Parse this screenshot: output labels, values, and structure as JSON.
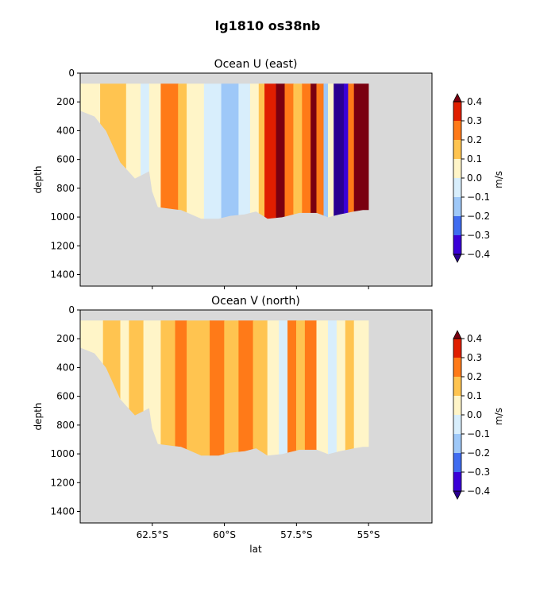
{
  "suptitle": "lg1810 os38nb",
  "colorbar_levels": [
    -0.4,
    -0.3,
    -0.2,
    -0.1,
    0.0,
    0.1,
    0.2,
    0.3,
    0.4
  ],
  "colorbar_tick_labels": [
    "−0.4",
    "−0.3",
    "−0.2",
    "−0.1",
    "0.0",
    "0.1",
    "0.2",
    "0.3",
    "0.4"
  ],
  "colorbar_colors": [
    "#3a00d8",
    "#3f6cf0",
    "#9ec8f8",
    "#d8eefc",
    "#fff5c8",
    "#ffc450",
    "#ff7a18",
    "#e01e00"
  ],
  "colorbar_extend_colors": {
    "under": "#2a0090",
    "over": "#7a0010"
  },
  "land_color": "#d9d9d9",
  "chart_data": [
    {
      "type": "heatmap",
      "title": "Ocean U (east)",
      "xlabel": "",
      "ylabel": "depth",
      "colorbar_label": "m/s",
      "x_unit": "degrees latitude",
      "xlim": [
        -65.0,
        -52.8
      ],
      "ylim": [
        1480,
        0
      ],
      "yticks": [
        0,
        200,
        400,
        600,
        800,
        1000,
        1200,
        1400
      ],
      "xticks": [
        -62.5,
        -60,
        -57.5,
        -55
      ],
      "xtick_labels": [
        "62.5°S",
        "60°S",
        "57.5°S",
        "55°S"
      ],
      "data_top_depth": 75,
      "section_bottom_depth": [
        [
          -65.0,
          260
        ],
        [
          -64.5,
          300
        ],
        [
          -64.1,
          400
        ],
        [
          -63.6,
          620
        ],
        [
          -63.1,
          730
        ],
        [
          -62.6,
          680
        ],
        [
          -62.5,
          820
        ],
        [
          -62.3,
          930
        ],
        [
          -61.5,
          950
        ],
        [
          -60.8,
          1010
        ],
        [
          -60.2,
          1010
        ],
        [
          -59.8,
          990
        ],
        [
          -59.3,
          980
        ],
        [
          -58.9,
          960
        ],
        [
          -58.5,
          1010
        ],
        [
          -58.0,
          1000
        ],
        [
          -57.4,
          970
        ],
        [
          -56.8,
          970
        ],
        [
          -56.4,
          1000
        ],
        [
          -56.0,
          980
        ],
        [
          -55.5,
          960
        ],
        [
          -55.2,
          950
        ],
        [
          -55.0,
          950
        ]
      ],
      "section_east_edge_lat": -55.0,
      "velocity_bands": [
        [
          -65.0,
          -64.3,
          0.05
        ],
        [
          -64.3,
          -63.4,
          0.15
        ],
        [
          -63.4,
          -62.9,
          0.05
        ],
        [
          -62.9,
          -62.6,
          -0.05
        ],
        [
          -62.6,
          -62.2,
          0.05
        ],
        [
          -62.2,
          -61.6,
          0.25
        ],
        [
          -61.6,
          -61.3,
          0.15
        ],
        [
          -61.3,
          -60.7,
          0.05
        ],
        [
          -60.7,
          -60.1,
          -0.05
        ],
        [
          -60.1,
          -59.5,
          -0.15
        ],
        [
          -59.5,
          -59.1,
          -0.05
        ],
        [
          -59.1,
          -58.8,
          0.05
        ],
        [
          -58.8,
          -58.6,
          0.15
        ],
        [
          -58.6,
          -58.2,
          0.35
        ],
        [
          -58.2,
          -57.9,
          0.45
        ],
        [
          -57.9,
          -57.6,
          0.25
        ],
        [
          -57.6,
          -57.3,
          0.15
        ],
        [
          -57.3,
          -57.0,
          0.25
        ],
        [
          -57.0,
          -56.8,
          0.45
        ],
        [
          -56.8,
          -56.55,
          0.25
        ],
        [
          -56.55,
          -56.4,
          -0.15
        ],
        [
          -56.4,
          -56.2,
          0.05
        ],
        [
          -56.2,
          -55.85,
          -0.45
        ],
        [
          -55.85,
          -55.7,
          -0.35
        ],
        [
          -55.7,
          -55.5,
          0.25
        ],
        [
          -55.5,
          -55.0,
          0.45
        ]
      ]
    },
    {
      "type": "heatmap",
      "title": "Ocean V (north)",
      "xlabel": "lat",
      "ylabel": "depth",
      "colorbar_label": "m/s",
      "x_unit": "degrees latitude",
      "xlim": [
        -65.0,
        -52.8
      ],
      "ylim": [
        1480,
        0
      ],
      "yticks": [
        0,
        200,
        400,
        600,
        800,
        1000,
        1200,
        1400
      ],
      "xticks": [
        -62.5,
        -60,
        -57.5,
        -55
      ],
      "xtick_labels": [
        "62.5°S",
        "60°S",
        "57.5°S",
        "55°S"
      ],
      "data_top_depth": 75,
      "section_bottom_depth": [
        [
          -65.0,
          260
        ],
        [
          -64.5,
          300
        ],
        [
          -64.1,
          400
        ],
        [
          -63.6,
          620
        ],
        [
          -63.1,
          730
        ],
        [
          -62.6,
          680
        ],
        [
          -62.5,
          820
        ],
        [
          -62.3,
          930
        ],
        [
          -61.5,
          950
        ],
        [
          -60.8,
          1010
        ],
        [
          -60.2,
          1010
        ],
        [
          -59.8,
          990
        ],
        [
          -59.3,
          980
        ],
        [
          -58.9,
          960
        ],
        [
          -58.5,
          1010
        ],
        [
          -58.0,
          1000
        ],
        [
          -57.4,
          970
        ],
        [
          -56.8,
          970
        ],
        [
          -56.4,
          1000
        ],
        [
          -56.0,
          980
        ],
        [
          -55.5,
          960
        ],
        [
          -55.2,
          950
        ],
        [
          -55.0,
          950
        ]
      ],
      "section_east_edge_lat": -55.0,
      "velocity_bands": [
        [
          -65.0,
          -64.2,
          0.05
        ],
        [
          -64.2,
          -63.6,
          0.15
        ],
        [
          -63.6,
          -63.3,
          0.05
        ],
        [
          -63.3,
          -62.8,
          0.15
        ],
        [
          -62.8,
          -62.2,
          0.05
        ],
        [
          -62.2,
          -61.7,
          0.15
        ],
        [
          -61.7,
          -61.3,
          0.25
        ],
        [
          -61.3,
          -60.5,
          0.15
        ],
        [
          -60.5,
          -60.0,
          0.25
        ],
        [
          -60.0,
          -59.5,
          0.15
        ],
        [
          -59.5,
          -59.0,
          0.25
        ],
        [
          -59.0,
          -58.5,
          0.15
        ],
        [
          -58.5,
          -58.1,
          0.05
        ],
        [
          -58.1,
          -57.8,
          -0.05
        ],
        [
          -57.8,
          -57.5,
          0.25
        ],
        [
          -57.5,
          -57.2,
          0.15
        ],
        [
          -57.2,
          -56.8,
          0.25
        ],
        [
          -56.8,
          -56.4,
          0.05
        ],
        [
          -56.4,
          -56.1,
          -0.05
        ],
        [
          -56.1,
          -55.8,
          0.05
        ],
        [
          -55.8,
          -55.5,
          0.15
        ],
        [
          -55.5,
          -55.0,
          0.05
        ]
      ]
    }
  ]
}
